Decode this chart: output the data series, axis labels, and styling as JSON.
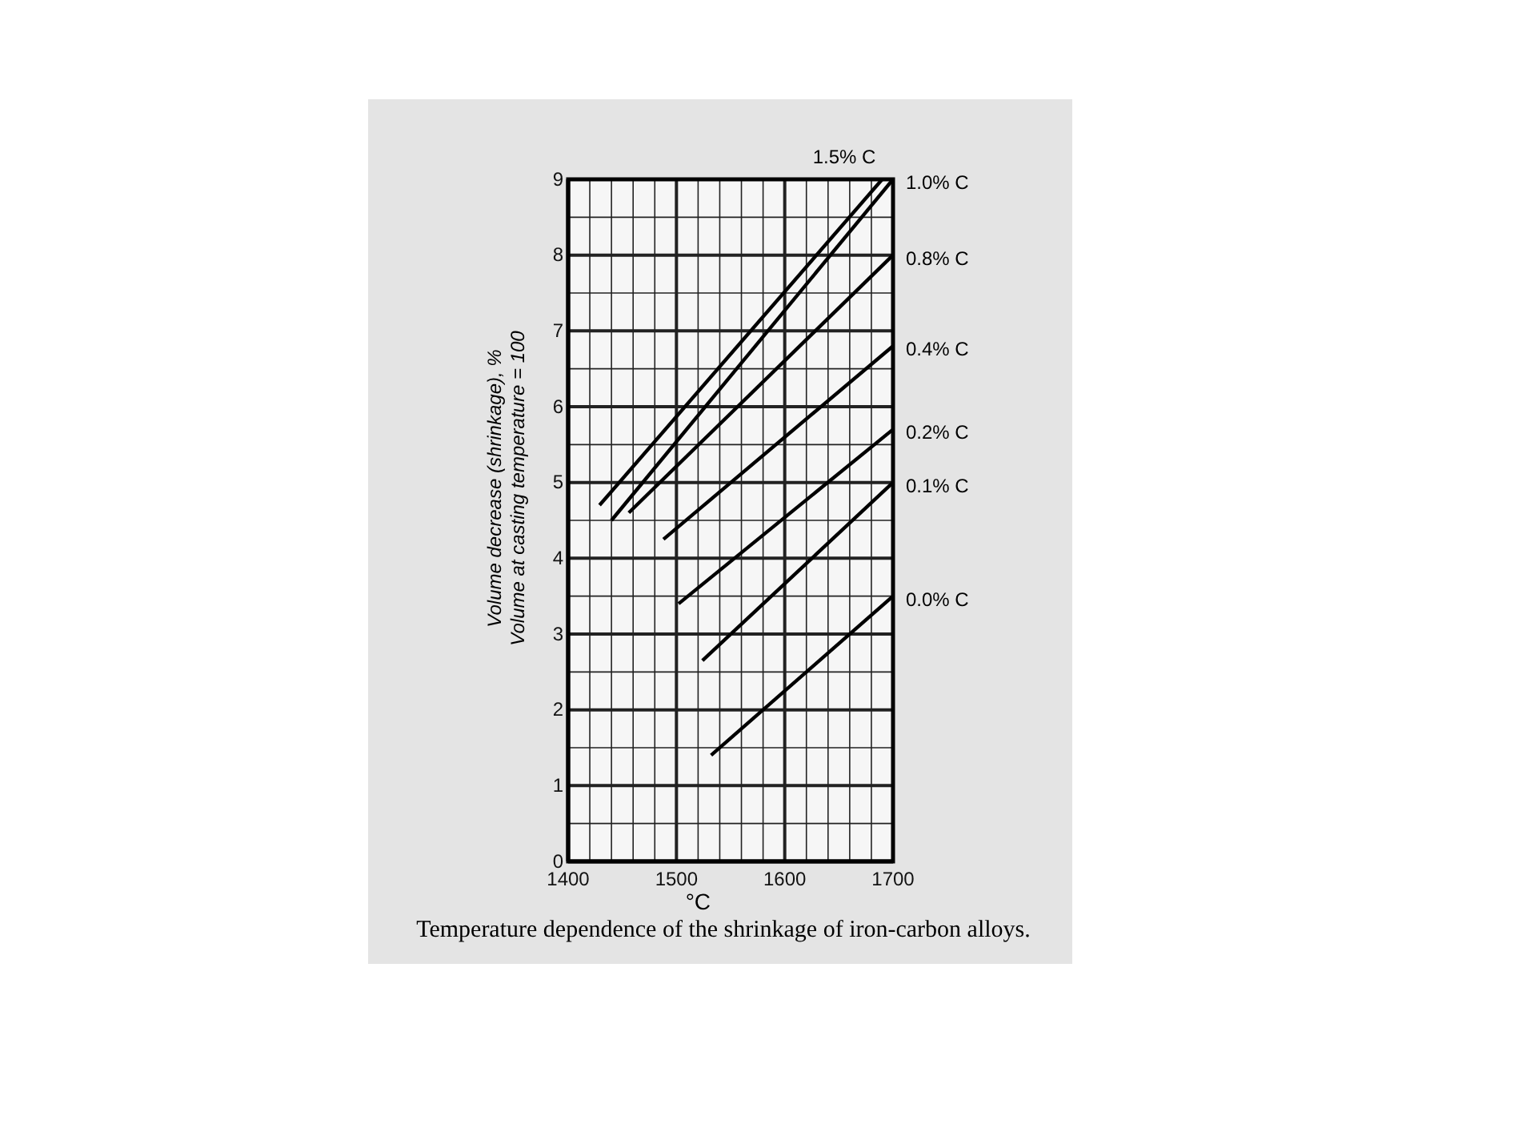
{
  "chart_data": {
    "type": "line",
    "title": "Temperature dependence of the shrinkage of iron-carbon alloys.",
    "xlabel": "°C",
    "ylabel": "Volume decrease (shrinkage), %\nVolume at casting temperature = 100",
    "xlim": [
      1400,
      1700
    ],
    "ylim": [
      0,
      9
    ],
    "xticks": [
      1400,
      {
        "value": 1420,
        "label": null
      },
      {
        "value": 1440,
        "label": null
      },
      {
        "value": 1460,
        "label": null
      },
      {
        "value": 1480,
        "label": null
      },
      1500,
      {
        "value": 1520,
        "label": null
      },
      {
        "value": 1540,
        "label": null
      },
      {
        "value": 1560,
        "label": null
      },
      {
        "value": 1580,
        "label": null
      },
      1600,
      {
        "value": 1620,
        "label": null
      },
      {
        "value": 1640,
        "label": null
      },
      {
        "value": 1660,
        "label": null
      },
      {
        "value": 1680,
        "label": null
      },
      1700
    ],
    "yticks": [
      0,
      {
        "value": 0.5,
        "label": null
      },
      1,
      {
        "value": 1.5,
        "label": null
      },
      2,
      {
        "value": 2.5,
        "label": null
      },
      3,
      {
        "value": 3.5,
        "label": null
      },
      4,
      {
        "value": 4.5,
        "label": null
      },
      5,
      {
        "value": 5.5,
        "label": null
      },
      6,
      {
        "value": 6.5,
        "label": null
      },
      7,
      {
        "value": 7.5,
        "label": null
      },
      8,
      {
        "value": 8.5,
        "label": null
      },
      9
    ],
    "grid": true,
    "marker": "none",
    "line_style": "solid",
    "series": [
      {
        "name": "1.5% C",
        "color": "#000000",
        "x": [
          1429,
          1690
        ],
        "values": [
          4.7,
          9.0
        ]
      },
      {
        "name": "1.0% C",
        "color": "#000000",
        "x": [
          1440,
          1700
        ],
        "values": [
          4.5,
          9.0
        ]
      },
      {
        "name": "0.8% C",
        "color": "#000000",
        "x": [
          1456,
          1700
        ],
        "values": [
          4.6,
          8.0
        ]
      },
      {
        "name": "0.4% C",
        "color": "#000000",
        "x": [
          1488,
          1700
        ],
        "values": [
          4.25,
          6.8
        ]
      },
      {
        "name": "0.2% C",
        "color": "#000000",
        "x": [
          1502,
          1700
        ],
        "values": [
          3.4,
          5.7
        ]
      },
      {
        "name": "0.1% C",
        "color": "#000000",
        "x": [
          1524,
          1700
        ],
        "values": [
          2.65,
          5.0
        ]
      },
      {
        "name": "0.0% C",
        "color": "#000000",
        "x": [
          1532,
          1700
        ],
        "values": [
          1.4,
          3.5
        ]
      }
    ]
  }
}
